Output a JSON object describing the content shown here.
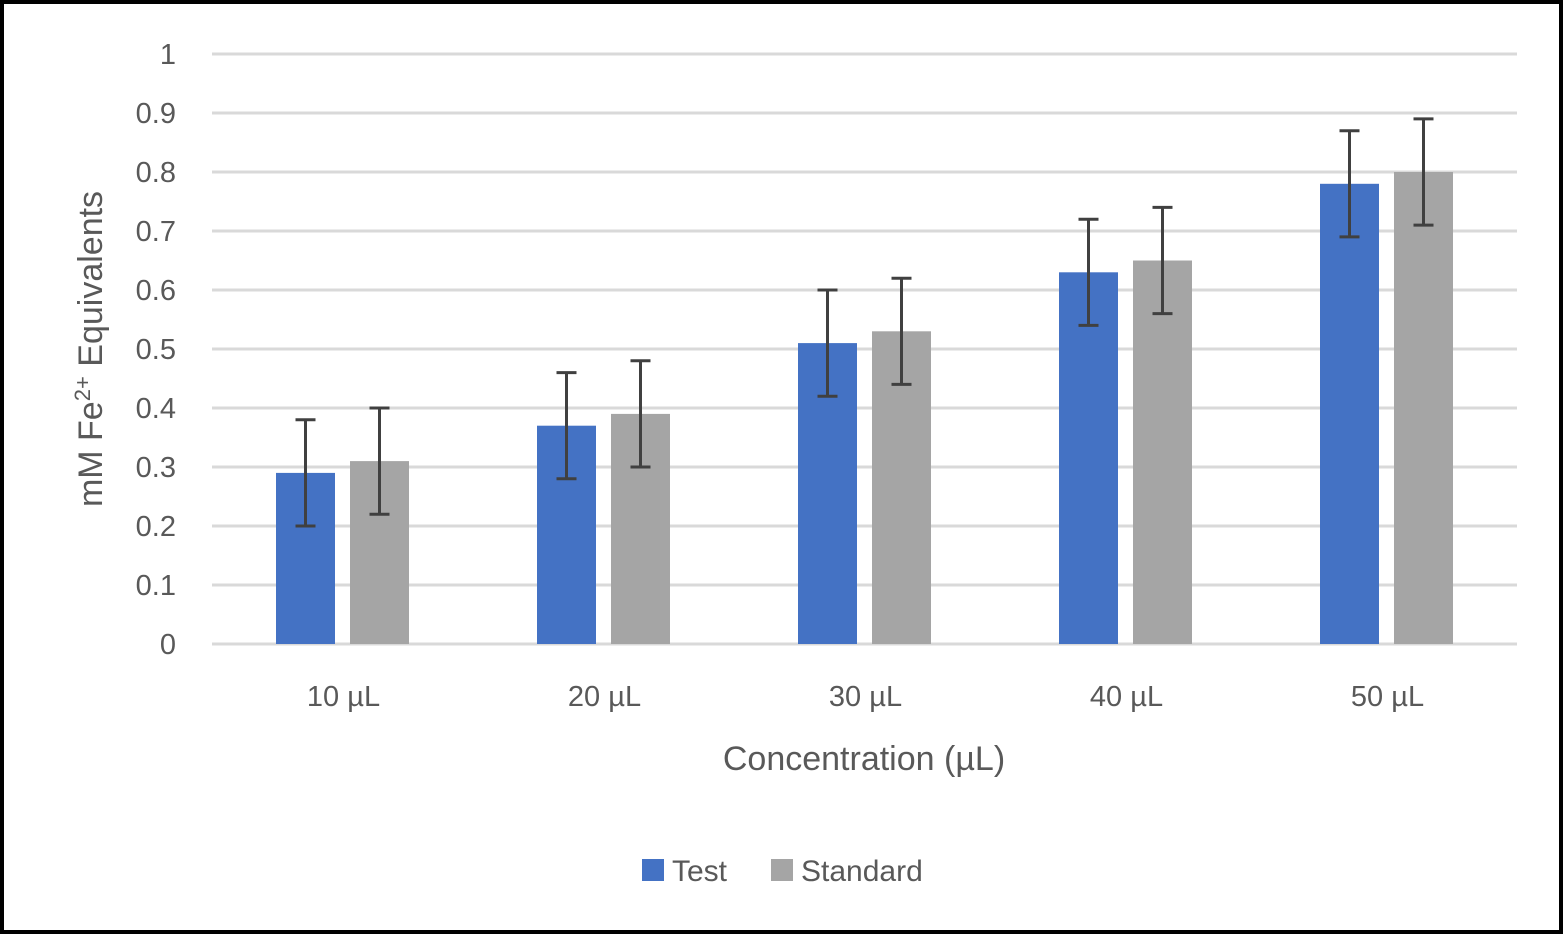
{
  "chart_data": {
    "type": "bar",
    "title": "",
    "xlabel": "Concentration (µL)",
    "ylabel": {
      "prefix": "mM Fe",
      "superscript": "2+",
      "suffix": " Equivalents"
    },
    "categories": [
      "10 µL",
      "20 µL",
      "30 µL",
      "40 µL",
      "50 µL"
    ],
    "ylim": [
      0,
      1
    ],
    "yticks": [
      "0",
      "0.1",
      "0.2",
      "0.3",
      "0.4",
      "0.5",
      "0.6",
      "0.7",
      "0.8",
      "0.9",
      "1"
    ],
    "grid": true,
    "legend_position": "bottom",
    "series": [
      {
        "name": "Test",
        "color": "#4472c4",
        "values": [
          0.29,
          0.37,
          0.51,
          0.63,
          0.78
        ],
        "error": [
          0.09,
          0.09,
          0.09,
          0.09,
          0.09
        ]
      },
      {
        "name": "Standard",
        "color": "#a5a5a5",
        "values": [
          0.31,
          0.39,
          0.53,
          0.65,
          0.8
        ],
        "error": [
          0.09,
          0.09,
          0.09,
          0.09,
          0.09
        ]
      }
    ],
    "error_bar_color": "#404040"
  }
}
